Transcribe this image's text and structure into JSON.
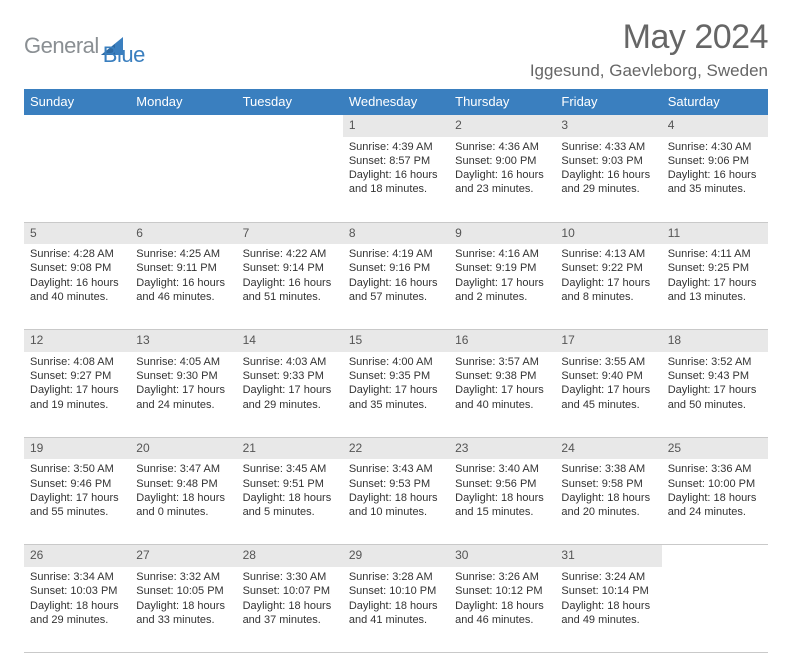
{
  "logo": {
    "part1": "General",
    "part2": "Blue"
  },
  "title": {
    "month": "May 2024",
    "location": "Iggesund, Gaevleborg, Sweden"
  },
  "colors": {
    "header_bg": "#3a7fbf",
    "header_text": "#ffffff",
    "daynum_bg": "#e8e8e8",
    "border": "#c9c9c9",
    "text": "#333333",
    "logo_gray": "#8a8f93",
    "logo_blue": "#3a7fbf",
    "title_gray": "#666666"
  },
  "weekdays": [
    "Sunday",
    "Monday",
    "Tuesday",
    "Wednesday",
    "Thursday",
    "Friday",
    "Saturday"
  ],
  "weeks": [
    {
      "nums": [
        "",
        "",
        "",
        "1",
        "2",
        "3",
        "4"
      ],
      "cells": [
        null,
        null,
        null,
        {
          "sr": "Sunrise: 4:39 AM",
          "ss": "Sunset: 8:57 PM",
          "dl1": "Daylight: 16 hours",
          "dl2": "and 18 minutes."
        },
        {
          "sr": "Sunrise: 4:36 AM",
          "ss": "Sunset: 9:00 PM",
          "dl1": "Daylight: 16 hours",
          "dl2": "and 23 minutes."
        },
        {
          "sr": "Sunrise: 4:33 AM",
          "ss": "Sunset: 9:03 PM",
          "dl1": "Daylight: 16 hours",
          "dl2": "and 29 minutes."
        },
        {
          "sr": "Sunrise: 4:30 AM",
          "ss": "Sunset: 9:06 PM",
          "dl1": "Daylight: 16 hours",
          "dl2": "and 35 minutes."
        }
      ]
    },
    {
      "nums": [
        "5",
        "6",
        "7",
        "8",
        "9",
        "10",
        "11"
      ],
      "cells": [
        {
          "sr": "Sunrise: 4:28 AM",
          "ss": "Sunset: 9:08 PM",
          "dl1": "Daylight: 16 hours",
          "dl2": "and 40 minutes."
        },
        {
          "sr": "Sunrise: 4:25 AM",
          "ss": "Sunset: 9:11 PM",
          "dl1": "Daylight: 16 hours",
          "dl2": "and 46 minutes."
        },
        {
          "sr": "Sunrise: 4:22 AM",
          "ss": "Sunset: 9:14 PM",
          "dl1": "Daylight: 16 hours",
          "dl2": "and 51 minutes."
        },
        {
          "sr": "Sunrise: 4:19 AM",
          "ss": "Sunset: 9:16 PM",
          "dl1": "Daylight: 16 hours",
          "dl2": "and 57 minutes."
        },
        {
          "sr": "Sunrise: 4:16 AM",
          "ss": "Sunset: 9:19 PM",
          "dl1": "Daylight: 17 hours",
          "dl2": "and 2 minutes."
        },
        {
          "sr": "Sunrise: 4:13 AM",
          "ss": "Sunset: 9:22 PM",
          "dl1": "Daylight: 17 hours",
          "dl2": "and 8 minutes."
        },
        {
          "sr": "Sunrise: 4:11 AM",
          "ss": "Sunset: 9:25 PM",
          "dl1": "Daylight: 17 hours",
          "dl2": "and 13 minutes."
        }
      ]
    },
    {
      "nums": [
        "12",
        "13",
        "14",
        "15",
        "16",
        "17",
        "18"
      ],
      "cells": [
        {
          "sr": "Sunrise: 4:08 AM",
          "ss": "Sunset: 9:27 PM",
          "dl1": "Daylight: 17 hours",
          "dl2": "and 19 minutes."
        },
        {
          "sr": "Sunrise: 4:05 AM",
          "ss": "Sunset: 9:30 PM",
          "dl1": "Daylight: 17 hours",
          "dl2": "and 24 minutes."
        },
        {
          "sr": "Sunrise: 4:03 AM",
          "ss": "Sunset: 9:33 PM",
          "dl1": "Daylight: 17 hours",
          "dl2": "and 29 minutes."
        },
        {
          "sr": "Sunrise: 4:00 AM",
          "ss": "Sunset: 9:35 PM",
          "dl1": "Daylight: 17 hours",
          "dl2": "and 35 minutes."
        },
        {
          "sr": "Sunrise: 3:57 AM",
          "ss": "Sunset: 9:38 PM",
          "dl1": "Daylight: 17 hours",
          "dl2": "and 40 minutes."
        },
        {
          "sr": "Sunrise: 3:55 AM",
          "ss": "Sunset: 9:40 PM",
          "dl1": "Daylight: 17 hours",
          "dl2": "and 45 minutes."
        },
        {
          "sr": "Sunrise: 3:52 AM",
          "ss": "Sunset: 9:43 PM",
          "dl1": "Daylight: 17 hours",
          "dl2": "and 50 minutes."
        }
      ]
    },
    {
      "nums": [
        "19",
        "20",
        "21",
        "22",
        "23",
        "24",
        "25"
      ],
      "cells": [
        {
          "sr": "Sunrise: 3:50 AM",
          "ss": "Sunset: 9:46 PM",
          "dl1": "Daylight: 17 hours",
          "dl2": "and 55 minutes."
        },
        {
          "sr": "Sunrise: 3:47 AM",
          "ss": "Sunset: 9:48 PM",
          "dl1": "Daylight: 18 hours",
          "dl2": "and 0 minutes."
        },
        {
          "sr": "Sunrise: 3:45 AM",
          "ss": "Sunset: 9:51 PM",
          "dl1": "Daylight: 18 hours",
          "dl2": "and 5 minutes."
        },
        {
          "sr": "Sunrise: 3:43 AM",
          "ss": "Sunset: 9:53 PM",
          "dl1": "Daylight: 18 hours",
          "dl2": "and 10 minutes."
        },
        {
          "sr": "Sunrise: 3:40 AM",
          "ss": "Sunset: 9:56 PM",
          "dl1": "Daylight: 18 hours",
          "dl2": "and 15 minutes."
        },
        {
          "sr": "Sunrise: 3:38 AM",
          "ss": "Sunset: 9:58 PM",
          "dl1": "Daylight: 18 hours",
          "dl2": "and 20 minutes."
        },
        {
          "sr": "Sunrise: 3:36 AM",
          "ss": "Sunset: 10:00 PM",
          "dl1": "Daylight: 18 hours",
          "dl2": "and 24 minutes."
        }
      ]
    },
    {
      "nums": [
        "26",
        "27",
        "28",
        "29",
        "30",
        "31",
        ""
      ],
      "cells": [
        {
          "sr": "Sunrise: 3:34 AM",
          "ss": "Sunset: 10:03 PM",
          "dl1": "Daylight: 18 hours",
          "dl2": "and 29 minutes."
        },
        {
          "sr": "Sunrise: 3:32 AM",
          "ss": "Sunset: 10:05 PM",
          "dl1": "Daylight: 18 hours",
          "dl2": "and 33 minutes."
        },
        {
          "sr": "Sunrise: 3:30 AM",
          "ss": "Sunset: 10:07 PM",
          "dl1": "Daylight: 18 hours",
          "dl2": "and 37 minutes."
        },
        {
          "sr": "Sunrise: 3:28 AM",
          "ss": "Sunset: 10:10 PM",
          "dl1": "Daylight: 18 hours",
          "dl2": "and 41 minutes."
        },
        {
          "sr": "Sunrise: 3:26 AM",
          "ss": "Sunset: 10:12 PM",
          "dl1": "Daylight: 18 hours",
          "dl2": "and 46 minutes."
        },
        {
          "sr": "Sunrise: 3:24 AM",
          "ss": "Sunset: 10:14 PM",
          "dl1": "Daylight: 18 hours",
          "dl2": "and 49 minutes."
        },
        null
      ]
    }
  ]
}
